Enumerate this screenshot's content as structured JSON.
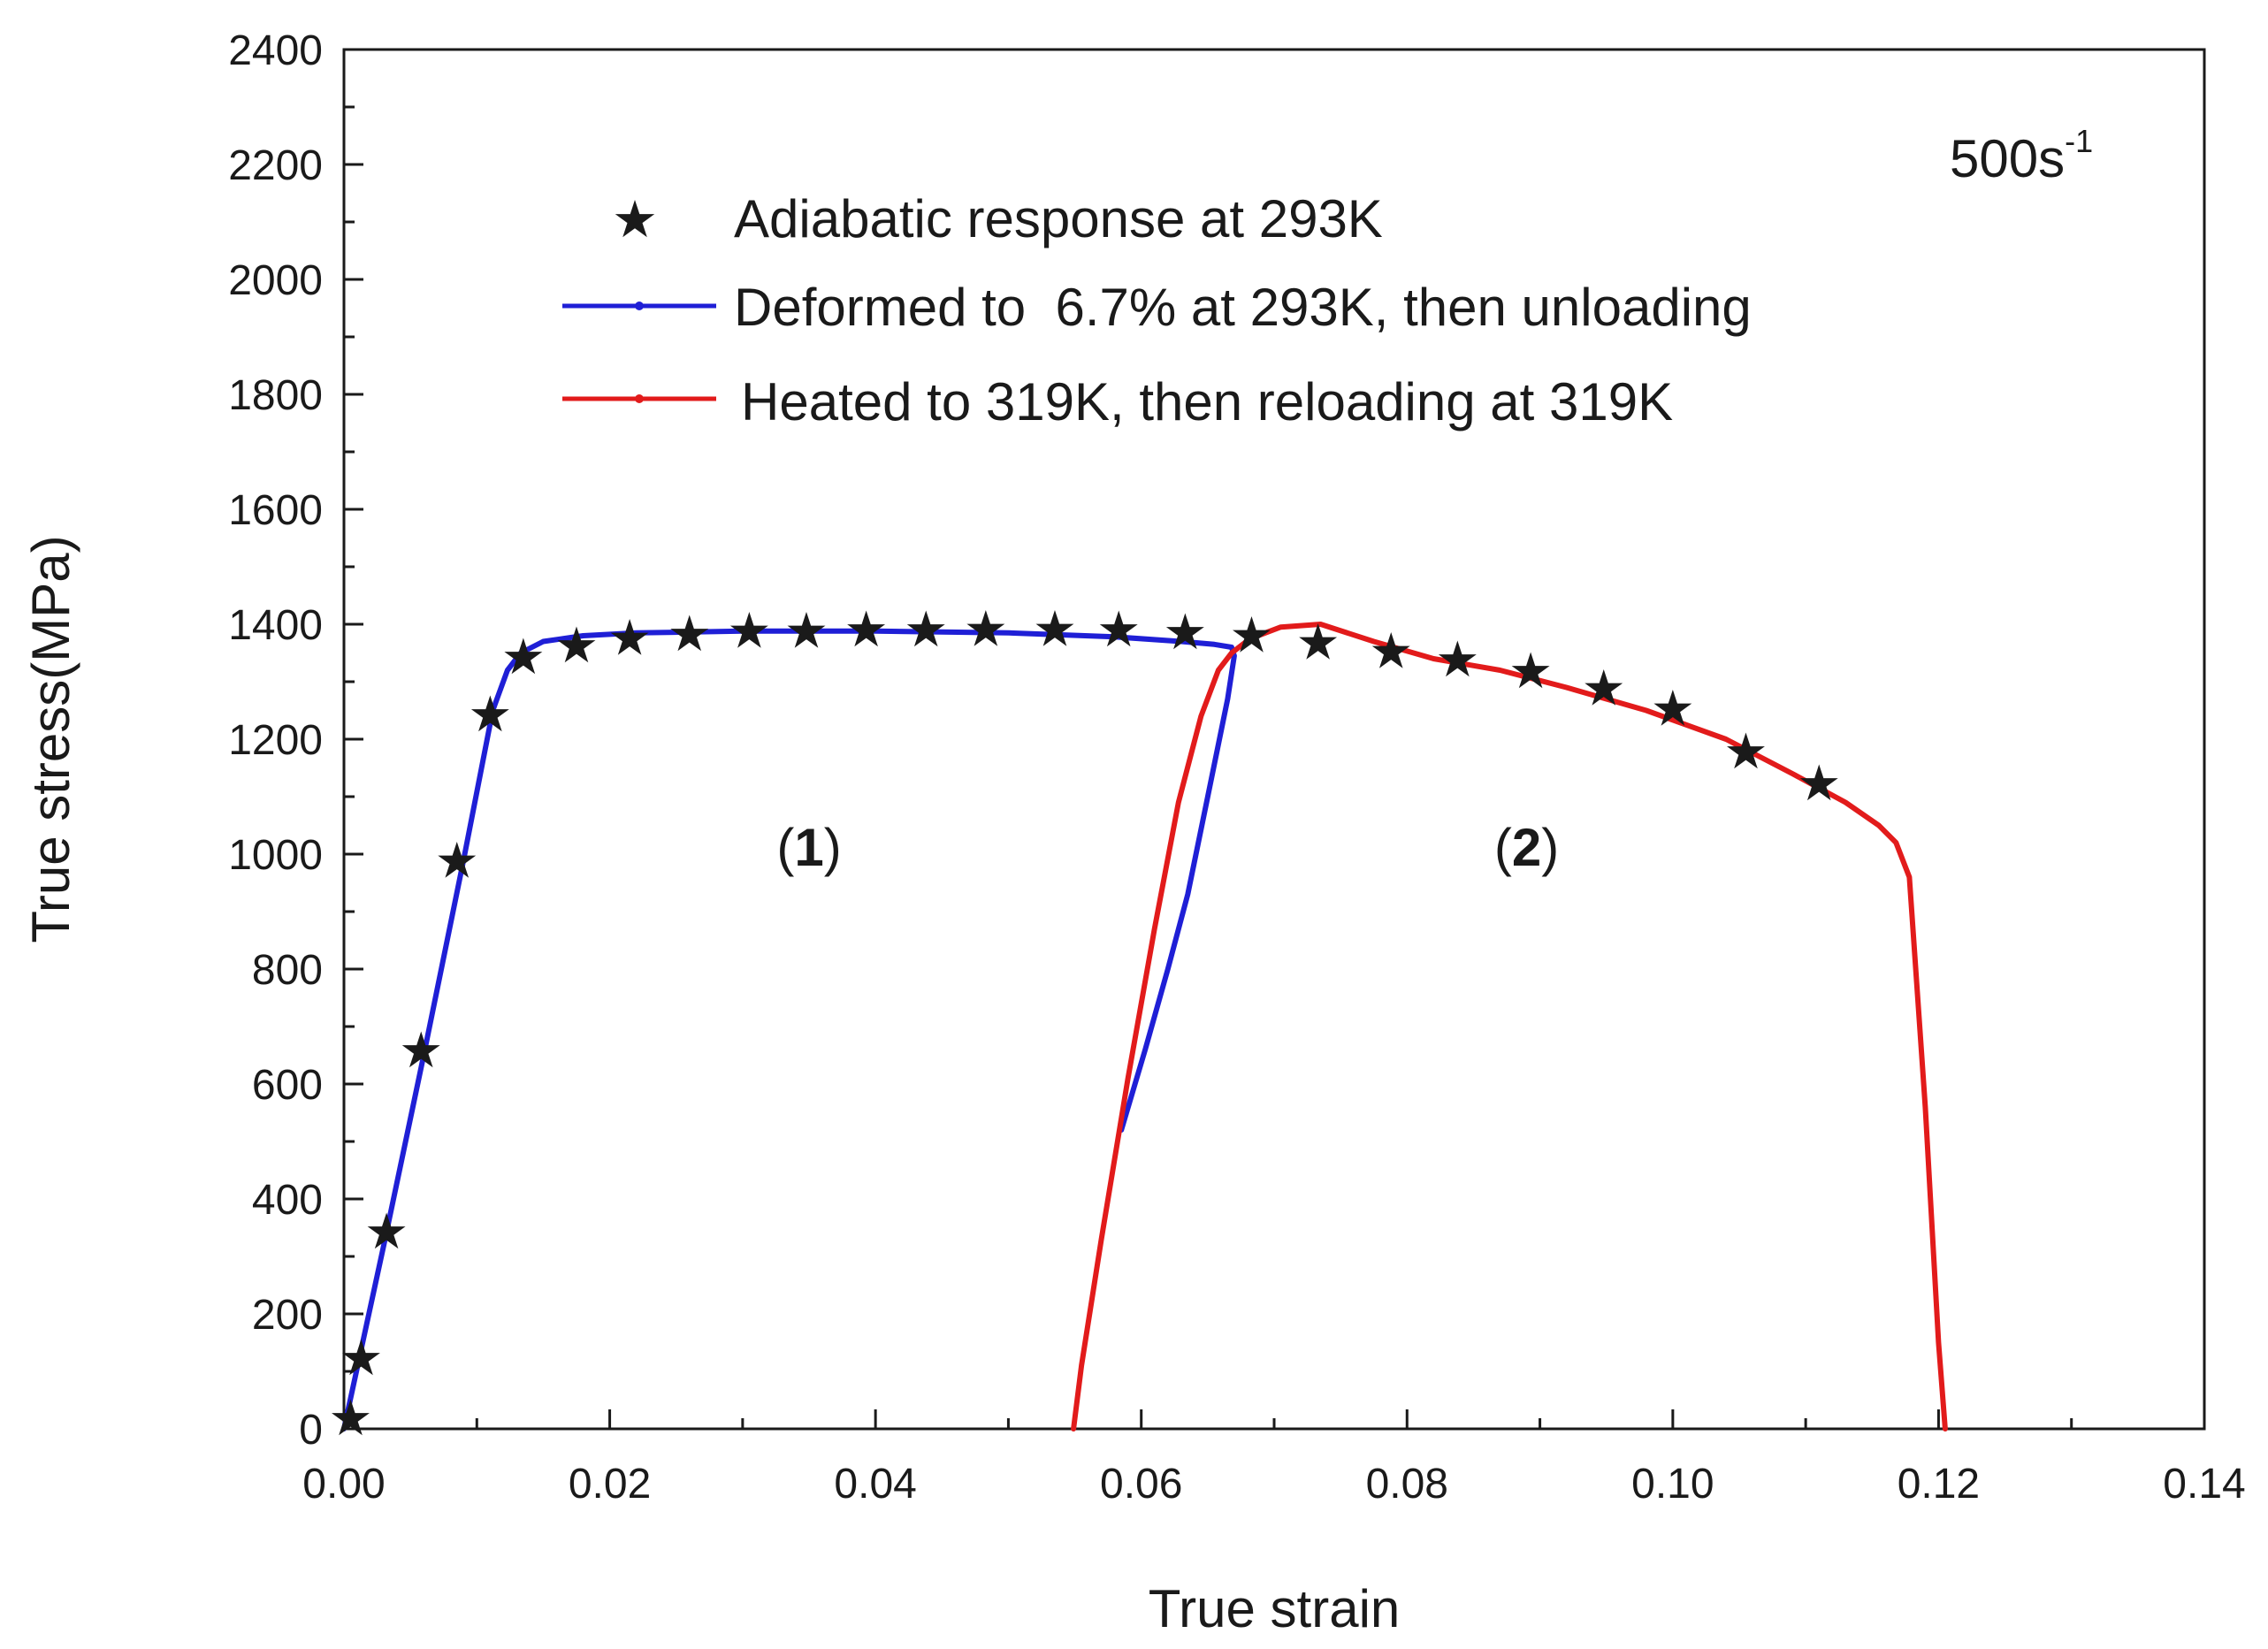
{
  "chart_data": {
    "type": "line",
    "xlabel": "True strain",
    "ylabel": "True stress(MPa)",
    "xlim": [
      0,
      0.14
    ],
    "ylim": [
      0,
      2400
    ],
    "xticks": [
      "0.00",
      "0.02",
      "0.04",
      "0.06",
      "0.08",
      "0.10",
      "0.12",
      "0.14"
    ],
    "xtick_values": [
      0,
      0.02,
      0.04,
      0.06,
      0.08,
      0.1,
      0.12,
      0.14
    ],
    "yticks": [
      "0",
      "200",
      "400",
      "600",
      "800",
      "1000",
      "1200",
      "1400",
      "1600",
      "1800",
      "2000",
      "2200",
      "2400"
    ],
    "ytick_values": [
      0,
      200,
      400,
      600,
      800,
      1000,
      1200,
      1400,
      1600,
      1800,
      2000,
      2200,
      2400
    ],
    "grid": false,
    "legend_position": "top-center",
    "annotation": {
      "base": "500s",
      "sup": "-1"
    },
    "regions": [
      {
        "open": "(",
        "num": "1",
        "close": ")",
        "x": 0.035,
        "y": 980
      },
      {
        "open": "(",
        "num": "2",
        "close": ")",
        "x": 0.089,
        "y": 980
      }
    ],
    "series": [
      {
        "name": "Adiabatic response at 293K",
        "kind": "markers",
        "marker": "star",
        "color": "#000000",
        "x": [
          0.0005,
          0.0013,
          0.0032,
          0.0058,
          0.0085,
          0.011,
          0.0135,
          0.0175,
          0.0215,
          0.026,
          0.0305,
          0.0348,
          0.0393,
          0.0438,
          0.0483,
          0.0535,
          0.0583,
          0.0633,
          0.0683,
          0.0733,
          0.0788,
          0.0838,
          0.0893,
          0.0948,
          0.1,
          0.1055,
          0.111
        ],
        "y": [
          20,
          125,
          345,
          660,
          990,
          1245,
          1345,
          1365,
          1378,
          1385,
          1390,
          1390,
          1392,
          1392,
          1393,
          1393,
          1392,
          1388,
          1382,
          1370,
          1355,
          1340,
          1320,
          1290,
          1255,
          1180,
          1125
        ]
      },
      {
        "name": "Deformed to  6.7% at 293K, then unloading",
        "kind": "line",
        "color": "#1f1fd6",
        "x": [
          0.0,
          0.003,
          0.006,
          0.009,
          0.0112,
          0.0123,
          0.0133,
          0.015,
          0.018,
          0.022,
          0.03,
          0.04,
          0.05,
          0.058,
          0.063,
          0.0655,
          0.0668,
          0.067,
          0.0665,
          0.065,
          0.0635,
          0.062,
          0.0603,
          0.0585
        ],
        "y": [
          0,
          320,
          650,
          990,
          1250,
          1320,
          1350,
          1370,
          1380,
          1385,
          1388,
          1388,
          1385,
          1378,
          1370,
          1365,
          1360,
          1345,
          1270,
          1100,
          930,
          800,
          660,
          520
        ]
      },
      {
        "name": "Heated to 319K, then reloading at 319K",
        "kind": "line",
        "color": "#e21b1b",
        "x": [
          0.0549,
          0.0555,
          0.057,
          0.059,
          0.061,
          0.0628,
          0.0645,
          0.0658,
          0.0668,
          0.0682,
          0.0705,
          0.0735,
          0.0775,
          0.082,
          0.087,
          0.092,
          0.098,
          0.104,
          0.109,
          0.113,
          0.1155,
          0.1168,
          0.1178,
          0.119,
          0.12,
          0.1205
        ],
        "y": [
          0,
          110,
          330,
          610,
          870,
          1090,
          1240,
          1320,
          1350,
          1375,
          1395,
          1400,
          1370,
          1340,
          1320,
          1290,
          1250,
          1200,
          1140,
          1090,
          1050,
          1020,
          960,
          560,
          150,
          0
        ]
      }
    ]
  }
}
